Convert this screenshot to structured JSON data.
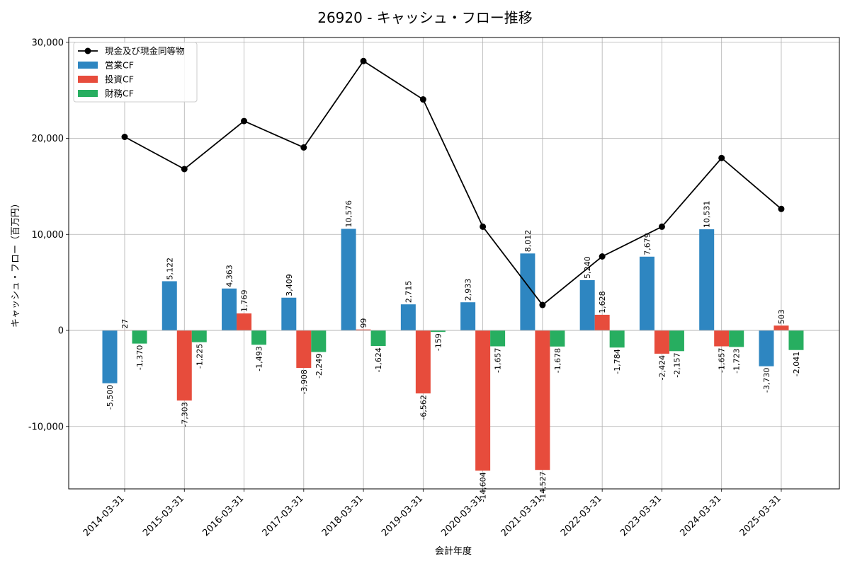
{
  "chart_data": {
    "type": "bar",
    "title": "26920 - キャッシュ・フロー推移",
    "xlabel": "会計年度",
    "ylabel": "キャッシュ・フロー（百万円）",
    "categories": [
      "2014-03-31",
      "2015-03-31",
      "2016-03-31",
      "2017-03-31",
      "2018-03-31",
      "2019-03-31",
      "2020-03-31",
      "2021-03-31",
      "2022-03-31",
      "2023-03-31",
      "2024-03-31",
      "2025-03-31"
    ],
    "ylim": [
      -16500,
      30500
    ],
    "yticks": [
      -10000,
      0,
      10000,
      20000,
      30000
    ],
    "ytick_labels": [
      "-10,000",
      "0",
      "10,000",
      "20,000",
      "30,000"
    ],
    "grid": true,
    "legend_position": "top-left",
    "series": [
      {
        "name": "営業CF",
        "kind": "bar",
        "color": "#2e86c1",
        "values": [
          -5500,
          5122,
          4363,
          3409,
          10576,
          2715,
          2933,
          8012,
          5240,
          7679,
          10531,
          -3730
        ],
        "labels": [
          "-5,500",
          "5,122",
          "4,363",
          "3,409",
          "10,576",
          "2,715",
          "2,933",
          "8,012",
          "5,240",
          "7,679",
          "10,531",
          "-3,730"
        ]
      },
      {
        "name": "投資CF",
        "kind": "bar",
        "color": "#e74c3c",
        "values": [
          27,
          -7303,
          1769,
          -3908,
          99,
          -6562,
          -14604,
          -14527,
          1628,
          -2424,
          -1657,
          503
        ],
        "labels": [
          "27",
          "-7,303",
          "1,769",
          "-3,908",
          "99",
          "-6,562",
          "-14,604",
          "-14,527",
          "1,628",
          "-2,424",
          "-1,657",
          "503"
        ]
      },
      {
        "name": "財務CF",
        "kind": "bar",
        "color": "#27ae60",
        "values": [
          -1370,
          -1225,
          -1493,
          -2249,
          -1624,
          -159,
          -1657,
          -1678,
          -1784,
          -2157,
          -1723,
          -2041
        ],
        "labels": [
          "-1,370",
          "-1,225",
          "-1,493",
          "-2,249",
          "-1,624",
          "-159",
          "-1,657",
          "-1,678",
          "-1,784",
          "-2,157",
          "-1,723",
          "-2,041"
        ]
      },
      {
        "name": "現金及び現金同等物",
        "kind": "line",
        "color": "#000000",
        "values": [
          20150,
          16800,
          21800,
          19050,
          28050,
          24050,
          10800,
          2650,
          7700,
          10800,
          17950,
          12650
        ]
      }
    ]
  }
}
